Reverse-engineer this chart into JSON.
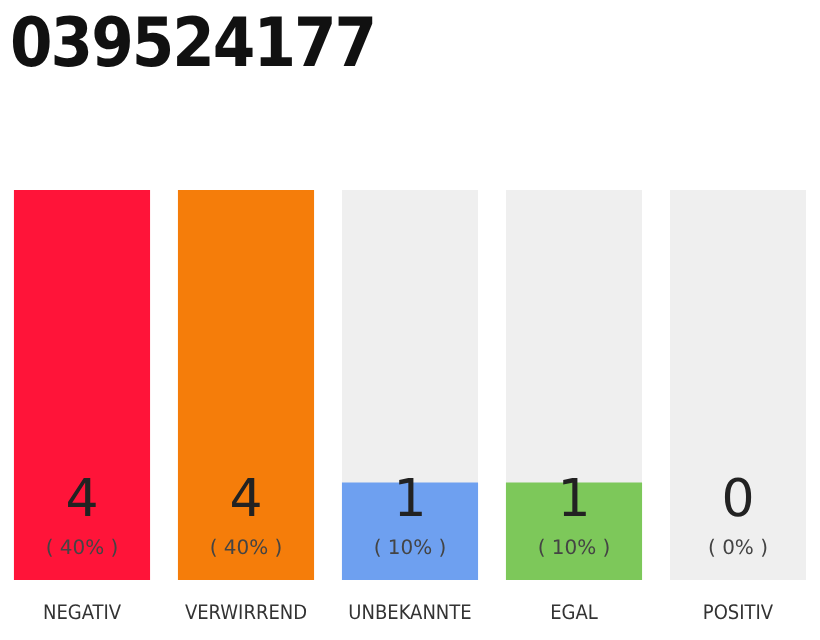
{
  "chart_data": {
    "type": "bar",
    "title": "039524177",
    "categories": [
      "NEGATIV",
      "VERWIRREND",
      "UNBEKANNTE",
      "EGAL",
      "POSITIV"
    ],
    "values": [
      4,
      4,
      1,
      1,
      0
    ],
    "colors": [
      "#ff1439",
      "#f57d0a",
      "#6ea0f0",
      "#7dc85a",
      "#dddddd"
    ],
    "value_labels": [
      "4\n( 40% )",
      "4\n( 40% )",
      "1\n( 10% )",
      "1\n( 10% )",
      "0\n( 0% )"
    ],
    "ylim": [
      0,
      4
    ],
    "grid": false,
    "legend": false
  }
}
